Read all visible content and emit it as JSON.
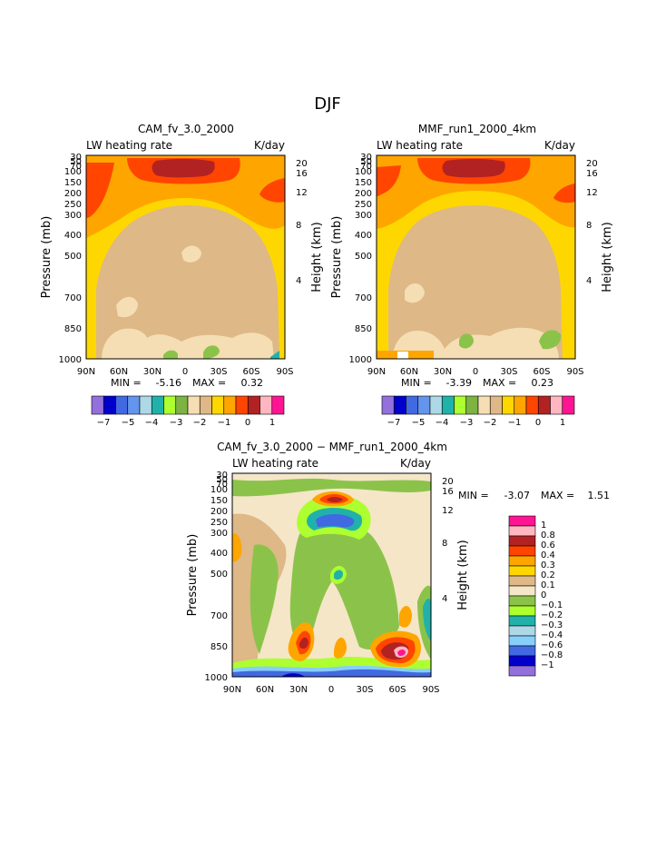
{
  "page_title": "DJF",
  "colors": {
    "scale13": [
      "#9370db",
      "#0000cd",
      "#4169e1",
      "#6495ed",
      "#add8e6",
      "#20b2aa",
      "#adff2f",
      "#7cb342",
      "#f5deb3",
      "#deb887",
      "#ffd700",
      "#ffa500",
      "#ff4500",
      "#b22222",
      "#ffb6c1",
      "#ff1493"
    ],
    "diff": [
      "#9370db",
      "#0000cd",
      "#4169e1",
      "#87cefa",
      "#add8e6",
      "#20b2aa",
      "#adff2f",
      "#8bc34a",
      "#f5e6c8",
      "#deb887",
      "#ffd700",
      "#ffa500",
      "#ff4500",
      "#b22222",
      "#ffb6c1",
      "#ff1493"
    ]
  },
  "chart_data": [
    {
      "type": "heatmap",
      "title": "CAM_fv_3.0_2000",
      "subtitle_left": "LW heating rate",
      "subtitle_right": "K/day",
      "ylabel": "Pressure (mb)",
      "y2label": "Height (km)",
      "x_ticks": [
        "90N",
        "60N",
        "30N",
        "0",
        "30S",
        "60S",
        "90S"
      ],
      "y_ticks": [
        "30",
        "50",
        "70",
        "100",
        "150",
        "200",
        "250",
        "300",
        "400",
        "500",
        "700",
        "850",
        "1000"
      ],
      "y2_ticks": [
        "20",
        "16",
        "12",
        "8",
        "4"
      ],
      "min_label": "MIN =",
      "min_value": "-5.16",
      "max_label": "MAX =",
      "max_value": "0.32",
      "legend_labels": [
        "−7",
        "−5",
        "−4",
        "−3",
        "−2",
        "−1",
        "0",
        "1"
      ]
    },
    {
      "type": "heatmap",
      "title": "MMF_run1_2000_4km",
      "subtitle_left": "LW heating rate",
      "subtitle_right": "K/day",
      "ylabel": "Pressure (mb)",
      "y2label": "Height (km)",
      "x_ticks": [
        "90N",
        "60N",
        "30N",
        "0",
        "30S",
        "60S",
        "90S"
      ],
      "y_ticks": [
        "30",
        "50",
        "70",
        "100",
        "150",
        "200",
        "250",
        "300",
        "400",
        "500",
        "700",
        "850",
        "1000"
      ],
      "y2_ticks": [
        "20",
        "16",
        "12",
        "8",
        "4"
      ],
      "min_label": "MIN =",
      "min_value": "-3.39",
      "max_label": "MAX =",
      "max_value": "0.23",
      "legend_labels": [
        "−7",
        "−5",
        "−4",
        "−3",
        "−2",
        "−1",
        "0",
        "1"
      ]
    },
    {
      "type": "heatmap",
      "title": "CAM_fv_3.0_2000 − MMF_run1_2000_4km",
      "subtitle_left": "LW heating rate",
      "subtitle_right": "K/day",
      "ylabel": "Pressure (mb)",
      "y2label": "Height (km)",
      "x_ticks": [
        "90N",
        "60N",
        "30N",
        "0",
        "30S",
        "60S",
        "90S"
      ],
      "y_ticks": [
        "30",
        "50",
        "70",
        "100",
        "150",
        "200",
        "250",
        "300",
        "400",
        "500",
        "700",
        "850",
        "1000"
      ],
      "y2_ticks": [
        "20",
        "16",
        "12",
        "8",
        "4"
      ],
      "min_label": "MIN =",
      "min_value": "-3.07",
      "max_label": "MAX =",
      "max_value": "1.51",
      "legend_labels": [
        "1",
        "0.8",
        "0.6",
        "0.4",
        "0.3",
        "0.2",
        "0.1",
        "0",
        "−0.1",
        "−0.2",
        "−0.3",
        "−0.4",
        "−0.6",
        "−0.8",
        "−1"
      ]
    }
  ]
}
